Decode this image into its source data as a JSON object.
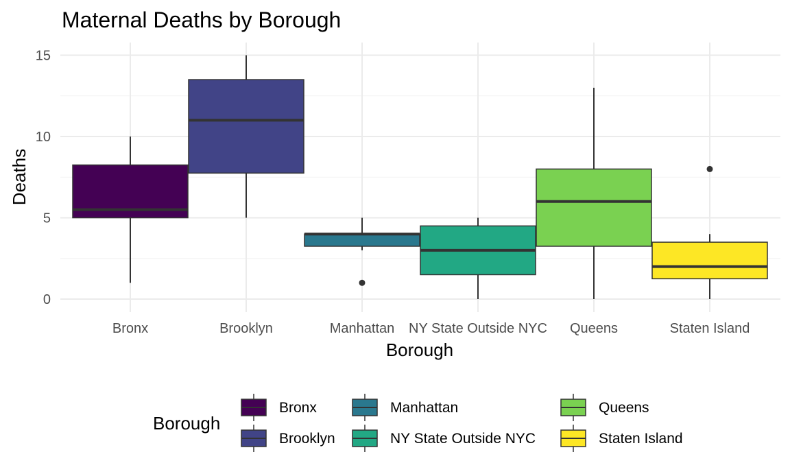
{
  "chart_data": {
    "type": "boxplot",
    "title": "Maternal Deaths by Borough",
    "xlabel": "Borough",
    "ylabel": "Deaths",
    "ylim": [
      -0.6,
      15
    ],
    "yticks": [
      0,
      5,
      10,
      15
    ],
    "grid": true,
    "categories": [
      "Bronx",
      "Brooklyn",
      "Manhattan",
      "NY State Outside NYC",
      "Queens",
      "Staten Island"
    ],
    "boxes": [
      {
        "name": "Bronx",
        "whisker_low": 1,
        "q1": 5,
        "median": 5.5,
        "q3": 8.25,
        "whisker_high": 10,
        "outliers": [],
        "color": "#440154"
      },
      {
        "name": "Brooklyn",
        "whisker_low": 5,
        "q1": 7.75,
        "median": 11,
        "q3": 13.5,
        "whisker_high": 15,
        "outliers": [],
        "color": "#414487"
      },
      {
        "name": "Manhattan",
        "whisker_low": 3,
        "q1": 3.25,
        "median": 4,
        "q3": 4,
        "whisker_high": 5,
        "outliers": [
          1
        ],
        "color": "#2A788E"
      },
      {
        "name": "NY State Outside NYC",
        "whisker_low": 0,
        "q1": 1.5,
        "median": 3,
        "q3": 4.5,
        "whisker_high": 5,
        "outliers": [],
        "color": "#22A884"
      },
      {
        "name": "Queens",
        "whisker_low": 0,
        "q1": 3.25,
        "median": 6,
        "q3": 8,
        "whisker_high": 13,
        "outliers": [],
        "color": "#7AD151"
      },
      {
        "name": "Staten Island",
        "whisker_low": 0,
        "q1": 1.25,
        "median": 2,
        "q3": 3.5,
        "whisker_high": 4,
        "outliers": [
          8
        ],
        "color": "#FDE725"
      }
    ],
    "legend": {
      "title": "Borough",
      "position": "bottom",
      "entries": [
        "Bronx",
        "Brooklyn",
        "Manhattan",
        "NY State Outside NYC",
        "Queens",
        "Staten Island"
      ]
    }
  }
}
